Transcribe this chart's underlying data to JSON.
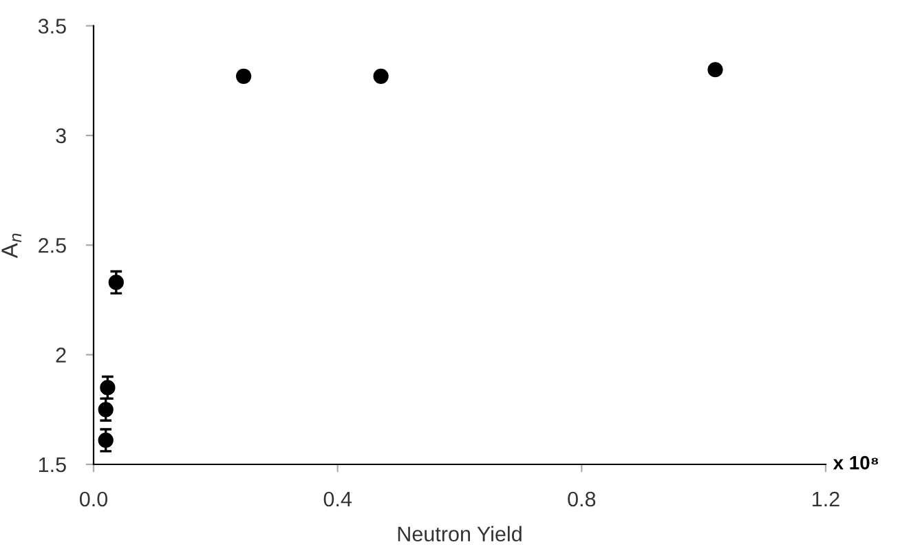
{
  "chart_data": {
    "type": "scatter",
    "xlabel": "Neutron Yield",
    "ylabel": "A$_{n}$",
    "x": [
      0.02,
      0.02,
      0.023,
      0.037,
      0.246,
      0.471,
      1.019
    ],
    "values": [
      1.61,
      1.75,
      1.85,
      2.33,
      3.27,
      3.27,
      3.3
    ],
    "errors": [
      0.05,
      0.05,
      0.05,
      0.05,
      0.02,
      0.01,
      null
    ],
    "color": "#000000",
    "marker": "circle",
    "grid": false,
    "xlim": [
      0,
      1.2
    ],
    "xticks": [
      {
        "value": 0,
        "label": "0.0"
      },
      {
        "value": 0.4,
        "label": "0.4"
      },
      {
        "value": 0.8,
        "label": "0.8"
      },
      {
        "value": 1.2,
        "label": "1.2"
      }
    ],
    "ylim": [
      1.5,
      3.5
    ],
    "yticks": [
      1.5,
      2,
      2.5,
      3,
      3.5
    ],
    "annotations": [
      "x 10⁸"
    ]
  }
}
